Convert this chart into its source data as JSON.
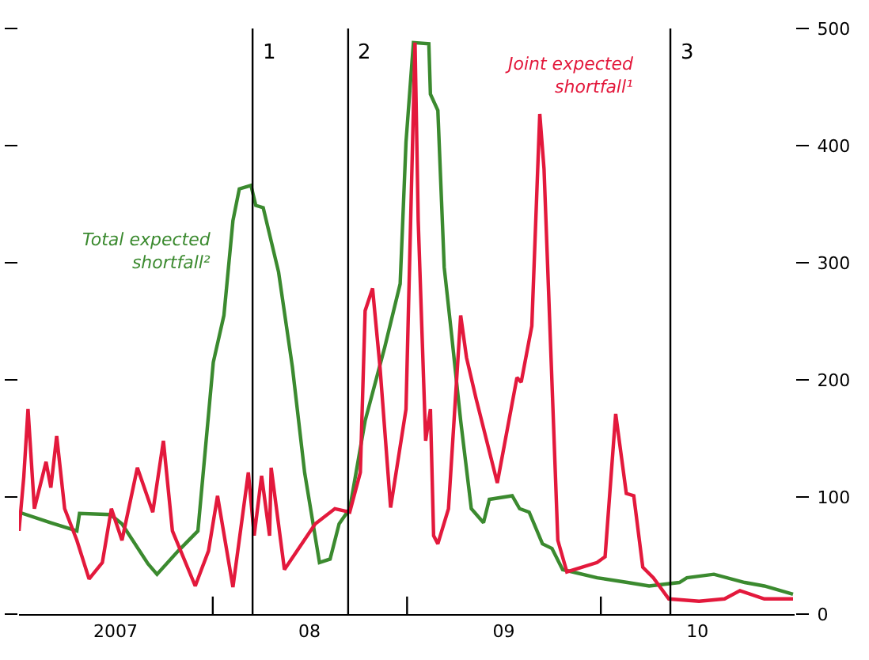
{
  "chart_data": {
    "type": "line",
    "xlim": [
      "2007-01-01",
      "2011-01-01"
    ],
    "xticks": [
      {
        "value": "2007-07-02",
        "label": "2007"
      },
      {
        "value": "2008-01-01",
        "label": null
      },
      {
        "value": "2008-07-01",
        "label": "08"
      },
      {
        "value": "2009-01-01",
        "label": null
      },
      {
        "value": "2009-07-02",
        "label": "09"
      },
      {
        "value": "2010-01-01",
        "label": null
      },
      {
        "value": "2010-07-02",
        "label": "10"
      }
    ],
    "ylim": [
      0,
      500
    ],
    "yticks": [
      0,
      100,
      200,
      300,
      400,
      500
    ],
    "legend": false,
    "series": [
      {
        "name": "Total expected shortfall²",
        "color": "#3b8a2f",
        "x": [
          "2007-01-01",
          "2007-03-02",
          "2007-04-20",
          "2007-04-25",
          "2007-06-22",
          "2007-07-14",
          "2007-09-01",
          "2007-09-18",
          "2007-10-28",
          "2007-12-04",
          "2008-01-02",
          "2008-01-22",
          "2008-02-08",
          "2008-02-20",
          "2008-03-13",
          "2008-03-22",
          "2008-04-05",
          "2008-05-04",
          "2008-05-30",
          "2008-06-22",
          "2008-07-20",
          "2008-08-09",
          "2008-08-26",
          "2008-09-15",
          "2008-10-14",
          "2008-11-20",
          "2008-12-19",
          "2008-12-30",
          "2009-01-13",
          "2009-02-11",
          "2009-02-14",
          "2009-02-28",
          "2009-03-12",
          "2009-03-26",
          "2009-04-12",
          "2009-05-02",
          "2009-05-25",
          "2009-06-05",
          "2009-07-18",
          "2009-08-01",
          "2009-08-19",
          "2009-09-13",
          "2009-10-01",
          "2009-10-21",
          "2009-12-25",
          "2010-02-20",
          "2010-04-02",
          "2010-05-29",
          "2010-06-12",
          "2010-08-02",
          "2010-09-29",
          "2010-11-05",
          "2010-12-29"
        ],
        "values": [
          87,
          78,
          71,
          86,
          85,
          77,
          43,
          34,
          54,
          71,
          215,
          255,
          336,
          363,
          366,
          349,
          347,
          292,
          211,
          121,
          44,
          47,
          77,
          90,
          165,
          228,
          282,
          403,
          488,
          487,
          444,
          430,
          296,
          238,
          165,
          90,
          78,
          98,
          101,
          90,
          87,
          60,
          56,
          38,
          31,
          27,
          24,
          27,
          31,
          34,
          27,
          24,
          17
        ]
      },
      {
        "name": "Joint expected shortfall¹",
        "color": "#e3193c",
        "x": [
          "2007-01-01",
          "2007-01-10",
          "2007-01-18",
          "2007-01-30",
          "2007-02-21",
          "2007-03-02",
          "2007-03-13",
          "2007-03-28",
          "2007-04-20",
          "2007-05-13",
          "2007-06-07",
          "2007-06-24",
          "2007-07-14",
          "2007-08-12",
          "2007-09-10",
          "2007-09-30",
          "2007-10-17",
          "2007-11-29",
          "2007-12-24",
          "2008-01-10",
          "2008-02-08",
          "2008-03-08",
          "2008-03-19",
          "2008-04-02",
          "2008-04-17",
          "2008-04-20",
          "2008-05-15",
          "2008-07-12",
          "2008-08-18",
          "2008-09-15",
          "2008-10-05",
          "2008-10-14",
          "2008-10-28",
          "2008-11-11",
          "2008-12-01",
          "2008-12-30",
          "2009-01-16",
          "2009-01-22",
          "2009-02-05",
          "2009-02-14",
          "2009-02-20",
          "2009-02-28",
          "2009-03-20",
          "2009-04-12",
          "2009-04-23",
          "2009-05-11",
          "2009-06-20",
          "2009-07-27",
          "2009-08-04",
          "2009-08-24",
          "2009-09-08",
          "2009-09-16",
          "2009-10-12",
          "2009-10-29",
          "2009-12-25",
          "2010-01-09",
          "2010-01-29",
          "2010-02-18",
          "2010-03-04",
          "2010-03-21",
          "2010-04-10",
          "2010-05-09",
          "2010-07-05",
          "2010-08-22",
          "2010-09-20",
          "2010-11-05",
          "2010-12-29"
        ],
        "values": [
          71,
          117,
          175,
          90,
          130,
          108,
          152,
          90,
          63,
          30,
          44,
          90,
          63,
          125,
          87,
          148,
          71,
          24,
          54,
          101,
          23,
          121,
          67,
          118,
          67,
          125,
          38,
          77,
          90,
          87,
          121,
          259,
          278,
          211,
          91,
          175,
          488,
          336,
          148,
          175,
          67,
          60,
          90,
          255,
          219,
          184,
          112,
          202,
          198,
          246,
          427,
          380,
          63,
          36,
          44,
          49,
          171,
          103,
          101,
          40,
          31,
          13,
          11,
          13,
          20,
          13,
          13
        ]
      }
    ],
    "ref_lines": [
      {
        "axis": "x",
        "value": "2008-03-16",
        "label": "1",
        "color": "#000000"
      },
      {
        "axis": "x",
        "value": "2008-09-12",
        "label": "2",
        "color": "#000000"
      },
      {
        "axis": "x",
        "value": "2010-05-12",
        "label": "3",
        "color": "#000000"
      }
    ]
  }
}
